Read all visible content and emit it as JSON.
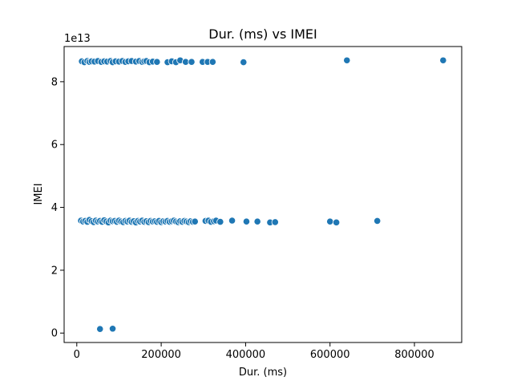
{
  "chart_data": {
    "type": "scatter",
    "title": "Dur. (ms) vs IMEI",
    "xlabel": "Dur. (ms)",
    "ylabel": "IMEI",
    "y_offset_text": "1e13",
    "xlim": [
      -30000,
      912000
    ],
    "ylim": [
      -0.3,
      9.12
    ],
    "y_multiplier": 10000000000000.0,
    "xticks": [
      0,
      200000,
      400000,
      600000,
      800000
    ],
    "xtick_labels": [
      "0",
      "200000",
      "400000",
      "600000",
      "800000"
    ],
    "yticks": [
      0,
      2,
      4,
      6,
      8
    ],
    "ytick_labels": [
      "0",
      "2",
      "4",
      "6",
      "8"
    ],
    "grid": false,
    "marker_color": "#1f77b4",
    "marker_edge_color": "#ffffff",
    "series": [
      {
        "points": [
          [
            12000,
            8.65
          ],
          [
            18000,
            8.62
          ],
          [
            25000,
            8.66
          ],
          [
            30000,
            8.63
          ],
          [
            35000,
            8.65
          ],
          [
            42000,
            8.64
          ],
          [
            50000,
            8.66
          ],
          [
            58000,
            8.63
          ],
          [
            65000,
            8.65
          ],
          [
            72000,
            8.64
          ],
          [
            80000,
            8.66
          ],
          [
            85000,
            8.62
          ],
          [
            92000,
            8.65
          ],
          [
            100000,
            8.64
          ],
          [
            108000,
            8.66
          ],
          [
            115000,
            8.63
          ],
          [
            122000,
            8.65
          ],
          [
            130000,
            8.66
          ],
          [
            140000,
            8.64
          ],
          [
            148000,
            8.66
          ],
          [
            155000,
            8.63
          ],
          [
            160000,
            8.65
          ],
          [
            165000,
            8.66
          ],
          [
            172000,
            8.62
          ],
          [
            180000,
            8.64
          ],
          [
            190000,
            8.63
          ],
          [
            215000,
            8.62
          ],
          [
            225000,
            8.65
          ],
          [
            235000,
            8.62
          ],
          [
            245000,
            8.68
          ],
          [
            258000,
            8.63
          ],
          [
            272000,
            8.63
          ],
          [
            298000,
            8.63
          ],
          [
            310000,
            8.63
          ],
          [
            322000,
            8.63
          ],
          [
            395000,
            8.62
          ],
          [
            640000,
            8.68
          ],
          [
            868000,
            8.68
          ],
          [
            10000,
            3.58
          ],
          [
            15000,
            3.55
          ],
          [
            20000,
            3.57
          ],
          [
            25000,
            3.54
          ],
          [
            30000,
            3.6
          ],
          [
            35000,
            3.56
          ],
          [
            40000,
            3.53
          ],
          [
            45000,
            3.58
          ],
          [
            50000,
            3.55
          ],
          [
            55000,
            3.57
          ],
          [
            60000,
            3.54
          ],
          [
            65000,
            3.59
          ],
          [
            70000,
            3.55
          ],
          [
            75000,
            3.52
          ],
          [
            80000,
            3.58
          ],
          [
            85000,
            3.56
          ],
          [
            90000,
            3.57
          ],
          [
            95000,
            3.54
          ],
          [
            100000,
            3.58
          ],
          [
            105000,
            3.55
          ],
          [
            110000,
            3.53
          ],
          [
            115000,
            3.57
          ],
          [
            120000,
            3.55
          ],
          [
            125000,
            3.58
          ],
          [
            130000,
            3.54
          ],
          [
            135000,
            3.56
          ],
          [
            140000,
            3.52
          ],
          [
            145000,
            3.57
          ],
          [
            150000,
            3.55
          ],
          [
            155000,
            3.58
          ],
          [
            160000,
            3.54
          ],
          [
            165000,
            3.56
          ],
          [
            170000,
            3.53
          ],
          [
            175000,
            3.57
          ],
          [
            180000,
            3.55
          ],
          [
            185000,
            3.56
          ],
          [
            190000,
            3.54
          ],
          [
            195000,
            3.57
          ],
          [
            200000,
            3.53
          ],
          [
            205000,
            3.56
          ],
          [
            210000,
            3.55
          ],
          [
            215000,
            3.57
          ],
          [
            220000,
            3.54
          ],
          [
            225000,
            3.56
          ],
          [
            230000,
            3.58
          ],
          [
            235000,
            3.55
          ],
          [
            240000,
            3.53
          ],
          [
            245000,
            3.56
          ],
          [
            250000,
            3.54
          ],
          [
            255000,
            3.57
          ],
          [
            260000,
            3.55
          ],
          [
            265000,
            3.53
          ],
          [
            270000,
            3.56
          ],
          [
            275000,
            3.54
          ],
          [
            280000,
            3.55
          ],
          [
            305000,
            3.57
          ],
          [
            312000,
            3.58
          ],
          [
            318000,
            3.54
          ],
          [
            325000,
            3.56
          ],
          [
            330000,
            3.58
          ],
          [
            340000,
            3.54
          ],
          [
            368000,
            3.58
          ],
          [
            402000,
            3.55
          ],
          [
            428000,
            3.55
          ],
          [
            458000,
            3.52
          ],
          [
            470000,
            3.53
          ],
          [
            600000,
            3.55
          ],
          [
            615000,
            3.52
          ],
          [
            712000,
            3.57
          ],
          [
            55000,
            0.13
          ],
          [
            85000,
            0.14
          ]
        ]
      }
    ]
  }
}
